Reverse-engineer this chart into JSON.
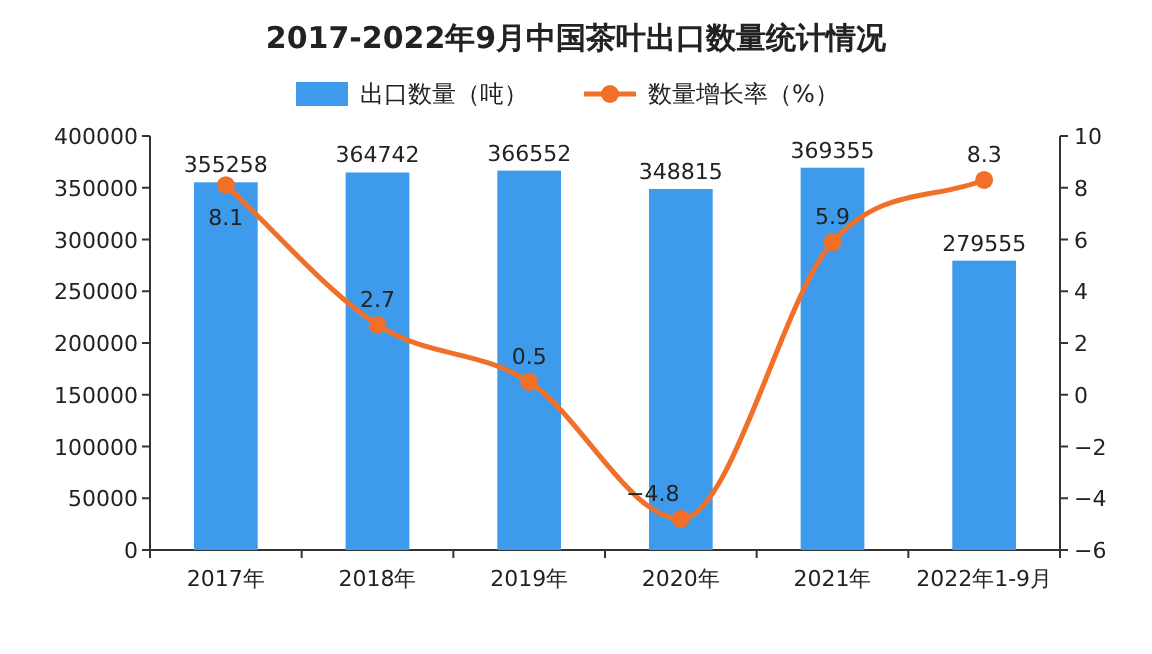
{
  "chart_data": {
    "type": "bar",
    "title": "2017-2022年9月中国茶叶出口数量统计情况",
    "categories": [
      "2017年",
      "2018年",
      "2019年",
      "2020年",
      "2021年",
      "2022年1-9月"
    ],
    "series": [
      {
        "name": "出口数量（吨）",
        "color": "#3e9bec",
        "values": [
          355258,
          364742,
          366552,
          348815,
          369355,
          279555
        ]
      },
      {
        "name": "数量增长率（%）",
        "type": "line",
        "axis": "y2",
        "color": "#f0702a",
        "marker": "circle",
        "values": [
          8.1,
          2.7,
          0.5,
          -4.8,
          5.9,
          8.3
        ]
      }
    ],
    "ylim": [
      0,
      400000
    ],
    "yticks": [
      0,
      50000,
      100000,
      150000,
      200000,
      250000,
      300000,
      350000,
      400000
    ],
    "y2lim": [
      -6,
      10
    ],
    "y2ticks": [
      -6,
      -4,
      -2,
      0,
      2,
      4,
      6,
      8,
      10
    ],
    "data_labels": true,
    "legend": "top",
    "grid": false
  }
}
